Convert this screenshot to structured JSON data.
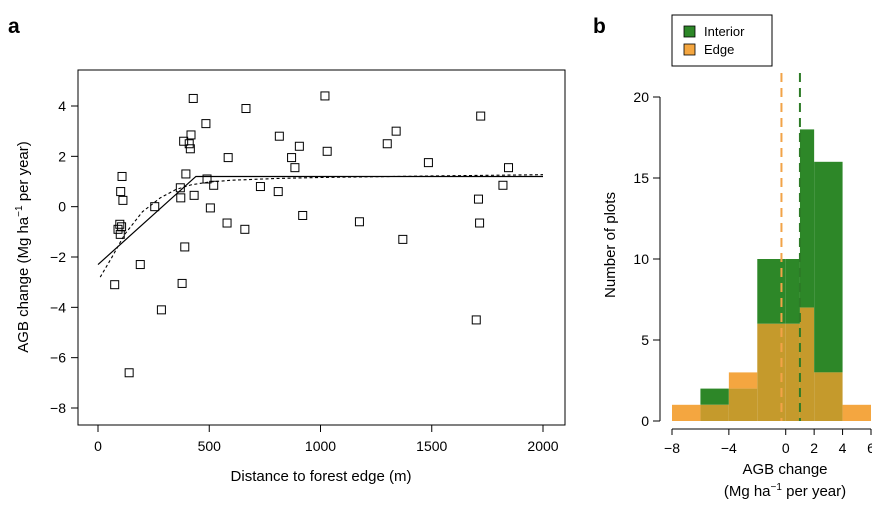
{
  "colors": {
    "interior": "#2d8728",
    "edge": "#f4a640",
    "overlap": "#c59a2c",
    "interior_mean_line": "#2d7b27",
    "edge_mean_line": "#f2a348"
  },
  "chart_data": [
    {
      "panel_label": "a",
      "type": "scatter",
      "xlabel": "Distance to forest edge (m)",
      "ylabel_parts": [
        "AGB change (Mg ha",
        "−1",
        " per year)"
      ],
      "xlim": [
        0,
        2000
      ],
      "ylim": [
        -8,
        4
      ],
      "xticks": [
        0,
        500,
        1000,
        1500,
        2000
      ],
      "yticks": [
        -8,
        -6,
        -4,
        -2,
        0,
        2,
        4
      ],
      "xtick_labels": [
        "0",
        "500",
        "1000",
        "1500",
        "2000"
      ],
      "ytick_labels": [
        "−8",
        "−6",
        "−4",
        "−2",
        "0",
        "2",
        "4"
      ],
      "points": [
        [
          75,
          -3.1
        ],
        [
          90,
          -0.9
        ],
        [
          98,
          -0.7
        ],
        [
          100,
          -1.1
        ],
        [
          102,
          0.6
        ],
        [
          106,
          -0.8
        ],
        [
          108,
          1.2
        ],
        [
          112,
          0.25
        ],
        [
          140,
          -6.6
        ],
        [
          190,
          -2.3
        ],
        [
          255,
          0.0
        ],
        [
          285,
          -4.1
        ],
        [
          370,
          0.75
        ],
        [
          372,
          0.35
        ],
        [
          378,
          -3.05
        ],
        [
          385,
          2.6
        ],
        [
          390,
          -1.6
        ],
        [
          395,
          1.3
        ],
        [
          410,
          2.5
        ],
        [
          415,
          2.3
        ],
        [
          418,
          2.85
        ],
        [
          428,
          4.3
        ],
        [
          432,
          0.45
        ],
        [
          485,
          3.3
        ],
        [
          490,
          1.1
        ],
        [
          505,
          -0.05
        ],
        [
          520,
          0.85
        ],
        [
          580,
          -0.65
        ],
        [
          585,
          1.95
        ],
        [
          660,
          -0.9
        ],
        [
          665,
          3.9
        ],
        [
          730,
          0.8
        ],
        [
          810,
          0.6
        ],
        [
          815,
          2.8
        ],
        [
          870,
          1.95
        ],
        [
          885,
          1.55
        ],
        [
          905,
          2.4
        ],
        [
          920,
          -0.35
        ],
        [
          1020,
          4.4
        ],
        [
          1030,
          2.2
        ],
        [
          1175,
          -0.6
        ],
        [
          1300,
          2.5
        ],
        [
          1340,
          3.0
        ],
        [
          1370,
          -1.3
        ],
        [
          1485,
          1.75
        ],
        [
          1700,
          -4.5
        ],
        [
          1710,
          0.3
        ],
        [
          1715,
          -0.65
        ],
        [
          1720,
          3.6
        ],
        [
          1820,
          0.85
        ],
        [
          1845,
          1.55
        ]
      ],
      "solid_fit": [
        [
          0,
          -2.3
        ],
        [
          440,
          1.2
        ],
        [
          2000,
          1.2
        ]
      ],
      "dashed_fit": [
        [
          10,
          -2.8
        ],
        [
          60,
          -2.05
        ],
        [
          120,
          -1.1
        ],
        [
          200,
          -0.2
        ],
        [
          280,
          0.35
        ],
        [
          350,
          0.68
        ],
        [
          420,
          0.87
        ],
        [
          500,
          0.98
        ],
        [
          600,
          1.05
        ],
        [
          800,
          1.12
        ],
        [
          1000,
          1.16
        ],
        [
          1500,
          1.22
        ],
        [
          2000,
          1.27
        ]
      ]
    },
    {
      "panel_label": "b",
      "type": "bar",
      "xlabel_lines": [
        "AGB change",
        "(Mg ha",
        "−1",
        " per year)"
      ],
      "ylabel": "Number of plots",
      "xlim": [
        -8,
        6
      ],
      "ylim": [
        0,
        20
      ],
      "xticks": [
        -8,
        -4,
        0,
        2,
        4,
        6
      ],
      "xtick_labels": [
        "−8",
        "−4",
        "0",
        "2",
        "4",
        "6"
      ],
      "yticks": [
        0,
        5,
        10,
        15,
        20
      ],
      "ytick_labels": [
        "0",
        "5",
        "10",
        "15",
        "20"
      ],
      "bin_edges": [
        -8,
        -6,
        -4,
        -2,
        0,
        1,
        2,
        4,
        6
      ],
      "series": [
        {
          "name": "Interior",
          "values": [
            0,
            2,
            2,
            10,
            10,
            18,
            16,
            0
          ]
        },
        {
          "name": "Edge",
          "values": [
            1,
            1,
            3,
            6,
            6,
            7,
            3,
            1
          ]
        }
      ],
      "mean_lines": {
        "Interior": 1.0,
        "Edge": -0.3
      },
      "legend_position": "top-left"
    }
  ]
}
